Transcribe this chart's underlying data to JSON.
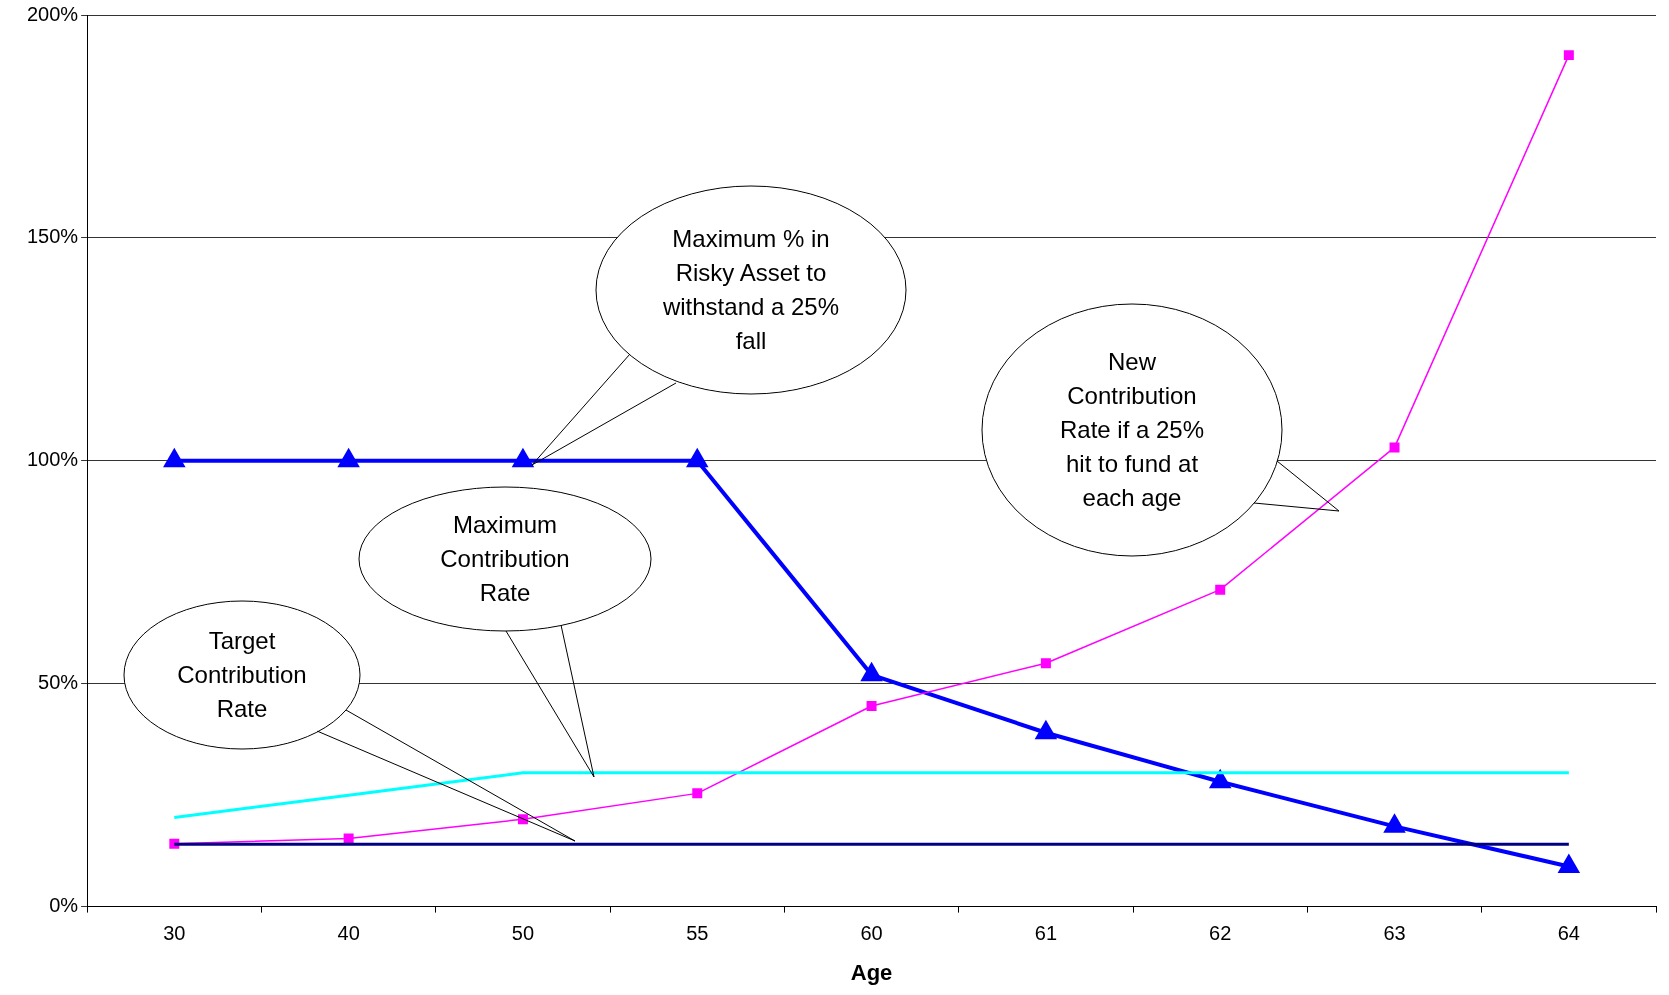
{
  "chart_data": {
    "type": "line",
    "xlabel": "Age",
    "categories": [
      "30",
      "40",
      "50",
      "55",
      "60",
      "61",
      "62",
      "63",
      "64"
    ],
    "series": [
      {
        "color": "#0000ff",
        "marker": "triangle",
        "values": [
          100,
          100,
          100,
          100,
          52,
          39,
          28,
          18,
          9
        ]
      },
      {
        "color": "#ff00ff",
        "marker": "square",
        "values": [
          14.1,
          15.3,
          19.6,
          25.4,
          45,
          54.6,
          71.1,
          103,
          191
        ]
      },
      {
        "color": "#00ffff",
        "marker": "none",
        "values": [
          20,
          25,
          30,
          30,
          30,
          30,
          30,
          30,
          30
        ]
      },
      {
        "color": "#000080",
        "marker": "none",
        "values": [
          14,
          14,
          14,
          14,
          14,
          14,
          14,
          14,
          14
        ]
      }
    ],
    "ylim": [
      0,
      200
    ],
    "yticks": [
      {
        "value": 0,
        "label": "0%"
      },
      {
        "value": 50,
        "label": "50%"
      },
      {
        "value": 100,
        "label": "100%"
      },
      {
        "value": 150,
        "label": "150%"
      },
      {
        "value": 200,
        "label": "200%"
      }
    ],
    "grid": "y",
    "legend": false,
    "annotations": [
      "Maximum % in Risky Asset to withstand a 25% fall",
      "Maximum Contribution Rate",
      "Target Contribution Rate",
      "New Contribution Rate if a 25% hit to fund at each age"
    ]
  }
}
